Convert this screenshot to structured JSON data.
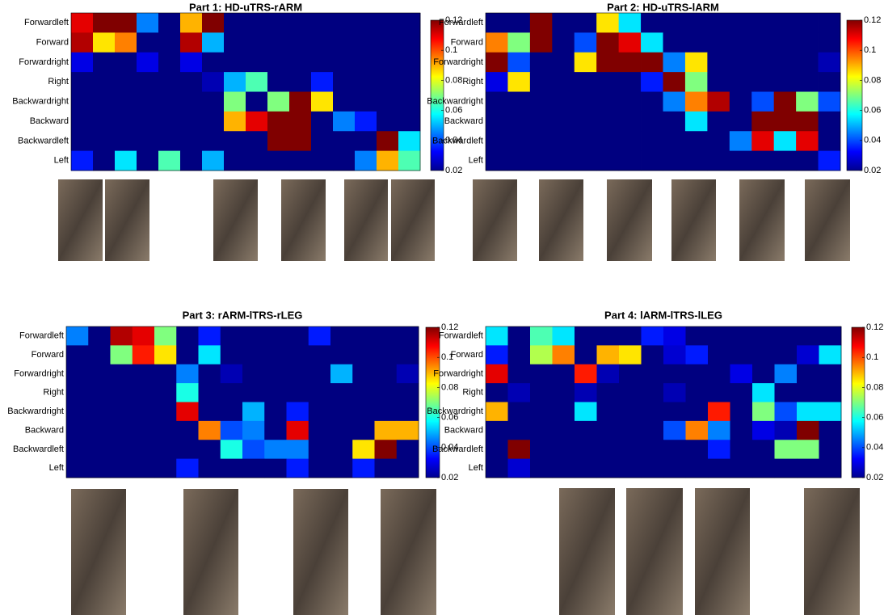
{
  "chart_data": [
    {
      "type": "heatmap",
      "title": "Part 1: HD-uTRS-rARM",
      "colormap": "jet",
      "rows": [
        "Forwardleft",
        "Forward",
        "Forwardright",
        "Right",
        "Backwardright",
        "Backward",
        "Backwardleft",
        "Left"
      ],
      "values": [
        [
          0.11,
          0.12,
          0.12,
          0.045,
          0.02,
          0.09,
          0.12,
          0.02,
          0.02,
          0.02,
          0.02,
          0.02,
          0.02,
          0.02,
          0.02,
          0.02
        ],
        [
          0.115,
          0.085,
          0.095,
          0.02,
          0.02,
          0.115,
          0.05,
          0.02,
          0.02,
          0.02,
          0.02,
          0.02,
          0.02,
          0.02,
          0.02,
          0.02
        ],
        [
          0.03,
          0.02,
          0.02,
          0.03,
          0.02,
          0.03,
          0.02,
          0.02,
          0.02,
          0.02,
          0.02,
          0.02,
          0.02,
          0.02,
          0.02,
          0.02
        ],
        [
          0.02,
          0.02,
          0.02,
          0.02,
          0.02,
          0.02,
          0.025,
          0.05,
          0.065,
          0.02,
          0.02,
          0.035,
          0.02,
          0.02,
          0.02,
          0.02
        ],
        [
          0.02,
          0.02,
          0.02,
          0.02,
          0.02,
          0.02,
          0.02,
          0.07,
          0.02,
          0.07,
          0.12,
          0.085,
          0.02,
          0.02,
          0.02,
          0.02
        ],
        [
          0.02,
          0.02,
          0.02,
          0.02,
          0.02,
          0.02,
          0.02,
          0.09,
          0.11,
          0.12,
          0.12,
          0.02,
          0.045,
          0.035,
          0.02,
          0.02
        ],
        [
          0.02,
          0.02,
          0.02,
          0.02,
          0.02,
          0.02,
          0.02,
          0.02,
          0.02,
          0.12,
          0.12,
          0.02,
          0.02,
          0.02,
          0.12,
          0.055
        ],
        [
          0.035,
          0.02,
          0.055,
          0.02,
          0.065,
          0.02,
          0.05,
          0.02,
          0.02,
          0.02,
          0.02,
          0.02,
          0.02,
          0.045,
          0.09,
          0.065
        ]
      ],
      "clim": [
        0.02,
        0.12
      ],
      "cticks": [
        0.02,
        0.04,
        0.06,
        0.08,
        0.1,
        0.12
      ]
    },
    {
      "type": "heatmap",
      "title": "Part 2: HD-uTRS-lARM",
      "colormap": "jet",
      "rows": [
        "Forwardleft",
        "Forward",
        "Forwardright",
        "Right",
        "Backwardright",
        "Backward",
        "Backwardleft",
        "Left"
      ],
      "values": [
        [
          0.02,
          0.02,
          0.12,
          0.02,
          0.02,
          0.085,
          0.055,
          0.02,
          0.02,
          0.02,
          0.02,
          0.02,
          0.02,
          0.02,
          0.02,
          0.02
        ],
        [
          0.095,
          0.07,
          0.12,
          0.02,
          0.04,
          0.12,
          0.11,
          0.055,
          0.02,
          0.02,
          0.02,
          0.02,
          0.02,
          0.02,
          0.02,
          0.02
        ],
        [
          0.12,
          0.04,
          0.02,
          0.02,
          0.085,
          0.12,
          0.12,
          0.12,
          0.045,
          0.085,
          0.02,
          0.02,
          0.02,
          0.02,
          0.02,
          0.025
        ],
        [
          0.03,
          0.085,
          0.02,
          0.02,
          0.02,
          0.02,
          0.02,
          0.035,
          0.12,
          0.07,
          0.02,
          0.02,
          0.02,
          0.02,
          0.02,
          0.02
        ],
        [
          0.02,
          0.02,
          0.02,
          0.02,
          0.02,
          0.02,
          0.02,
          0.02,
          0.045,
          0.095,
          0.115,
          0.02,
          0.04,
          0.12,
          0.07,
          0.04
        ],
        [
          0.02,
          0.02,
          0.02,
          0.02,
          0.02,
          0.02,
          0.02,
          0.02,
          0.02,
          0.055,
          0.02,
          0.02,
          0.12,
          0.12,
          0.12,
          0.02
        ],
        [
          0.02,
          0.02,
          0.02,
          0.02,
          0.02,
          0.02,
          0.02,
          0.02,
          0.02,
          0.02,
          0.02,
          0.045,
          0.11,
          0.055,
          0.11,
          0.02
        ],
        [
          0.02,
          0.02,
          0.02,
          0.02,
          0.02,
          0.02,
          0.02,
          0.02,
          0.02,
          0.02,
          0.02,
          0.02,
          0.02,
          0.02,
          0.02,
          0.035
        ]
      ],
      "clim": [
        0.02,
        0.12
      ],
      "cticks": [
        0.02,
        0.04,
        0.06,
        0.08,
        0.1,
        0.12
      ]
    },
    {
      "type": "heatmap",
      "title": "Part 3: rARM-lTRS-rLEG",
      "colormap": "jet",
      "rows": [
        "Forwardleft",
        "Forward",
        "Forwardright",
        "Right",
        "Backwardright",
        "Backward",
        "Backwardleft",
        "Left"
      ],
      "values": [
        [
          0.045,
          0.02,
          0.115,
          0.11,
          0.07,
          0.02,
          0.035,
          0.02,
          0.02,
          0.02,
          0.02,
          0.035,
          0.02,
          0.02,
          0.02,
          0.02
        ],
        [
          0.02,
          0.02,
          0.07,
          0.105,
          0.085,
          0.02,
          0.055,
          0.02,
          0.02,
          0.02,
          0.02,
          0.02,
          0.02,
          0.02,
          0.02,
          0.02
        ],
        [
          0.02,
          0.02,
          0.02,
          0.02,
          0.02,
          0.045,
          0.02,
          0.025,
          0.02,
          0.02,
          0.02,
          0.02,
          0.05,
          0.02,
          0.02,
          0.025
        ],
        [
          0.02,
          0.02,
          0.02,
          0.02,
          0.02,
          0.06,
          0.02,
          0.02,
          0.02,
          0.02,
          0.02,
          0.02,
          0.02,
          0.02,
          0.02,
          0.02
        ],
        [
          0.02,
          0.02,
          0.02,
          0.02,
          0.02,
          0.11,
          0.02,
          0.02,
          0.05,
          0.02,
          0.035,
          0.02,
          0.02,
          0.02,
          0.02,
          0.02
        ],
        [
          0.02,
          0.02,
          0.02,
          0.02,
          0.02,
          0.02,
          0.095,
          0.04,
          0.045,
          0.02,
          0.11,
          0.02,
          0.02,
          0.02,
          0.09,
          0.09
        ],
        [
          0.02,
          0.02,
          0.02,
          0.02,
          0.02,
          0.02,
          0.02,
          0.06,
          0.04,
          0.045,
          0.045,
          0.02,
          0.02,
          0.085,
          0.12,
          0.02
        ],
        [
          0.02,
          0.02,
          0.02,
          0.02,
          0.02,
          0.035,
          0.02,
          0.02,
          0.02,
          0.02,
          0.035,
          0.02,
          0.02,
          0.035,
          0.02,
          0.02
        ]
      ],
      "clim": [
        0.02,
        0.12
      ],
      "cticks": [
        0.02,
        0.04,
        0.06,
        0.08,
        0.1,
        0.12
      ]
    },
    {
      "type": "heatmap",
      "title": "Part 4: lARM-lTRS-lLEG",
      "colormap": "jet",
      "rows": [
        "Forwardleft",
        "Forward",
        "Forwardright",
        "Right",
        "Backwardright",
        "Backward",
        "Backwardleft",
        "Left"
      ],
      "values": [
        [
          0.055,
          0.02,
          0.065,
          0.055,
          0.02,
          0.02,
          0.02,
          0.035,
          0.03,
          0.02,
          0.02,
          0.02,
          0.02,
          0.02,
          0.02,
          0.02
        ],
        [
          0.035,
          0.02,
          0.075,
          0.095,
          0.02,
          0.09,
          0.085,
          0.02,
          0.028,
          0.035,
          0.02,
          0.02,
          0.02,
          0.02,
          0.028,
          0.055
        ],
        [
          0.11,
          0.02,
          0.02,
          0.02,
          0.105,
          0.025,
          0.02,
          0.02,
          0.02,
          0.02,
          0.02,
          0.03,
          0.02,
          0.045,
          0.02,
          0.02
        ],
        [
          0.02,
          0.025,
          0.02,
          0.02,
          0.025,
          0.02,
          0.02,
          0.02,
          0.025,
          0.02,
          0.02,
          0.02,
          0.055,
          0.02,
          0.02,
          0.02
        ],
        [
          0.09,
          0.02,
          0.02,
          0.02,
          0.055,
          0.02,
          0.02,
          0.02,
          0.02,
          0.02,
          0.105,
          0.02,
          0.07,
          0.04,
          0.055,
          0.055
        ],
        [
          0.02,
          0.02,
          0.02,
          0.02,
          0.02,
          0.02,
          0.02,
          0.02,
          0.04,
          0.095,
          0.045,
          0.02,
          0.03,
          0.025,
          0.12,
          0.02
        ],
        [
          0.02,
          0.12,
          0.02,
          0.02,
          0.02,
          0.02,
          0.02,
          0.02,
          0.02,
          0.02,
          0.035,
          0.02,
          0.02,
          0.07,
          0.07,
          0.02
        ],
        [
          0.02,
          0.028,
          0.02,
          0.02,
          0.02,
          0.02,
          0.02,
          0.02,
          0.02,
          0.02,
          0.02,
          0.02,
          0.02,
          0.02,
          0.02,
          0.02
        ]
      ],
      "clim": [
        0.02,
        0.12
      ],
      "cticks": [
        0.02,
        0.04,
        0.06,
        0.08,
        0.1,
        0.12
      ]
    }
  ]
}
